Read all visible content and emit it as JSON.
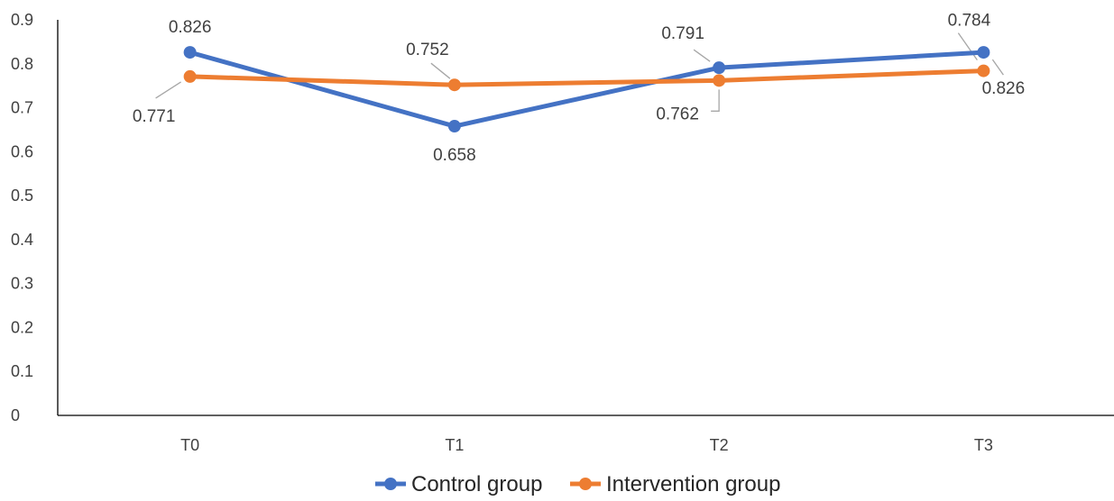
{
  "chart_data": {
    "type": "line",
    "categories": [
      "T0",
      "T1",
      "T2",
      "T3"
    ],
    "series": [
      {
        "name": "Control group",
        "values": [
          0.826,
          0.658,
          0.791,
          0.826
        ],
        "color": "#4472C4"
      },
      {
        "name": "Intervention group",
        "values": [
          0.771,
          0.752,
          0.762,
          0.784
        ],
        "color": "#ED7D31"
      }
    ],
    "yticks": [
      "0",
      "0.1",
      "0.2",
      "0.3",
      "0.4",
      "0.5",
      "0.6",
      "0.7",
      "0.8",
      "0.9"
    ],
    "ylim": [
      0,
      0.9
    ],
    "data_labels": [
      {
        "series": 0,
        "point": 0,
        "text": "0.826"
      },
      {
        "series": 0,
        "point": 1,
        "text": "0.658"
      },
      {
        "series": 0,
        "point": 2,
        "text": "0.791"
      },
      {
        "series": 0,
        "point": 3,
        "text": "0.826"
      },
      {
        "series": 1,
        "point": 0,
        "text": "0.771"
      },
      {
        "series": 1,
        "point": 1,
        "text": "0.752"
      },
      {
        "series": 1,
        "point": 2,
        "text": "0.762"
      },
      {
        "series": 1,
        "point": 3,
        "text": "0.784"
      }
    ],
    "legend_position": "bottom",
    "grid": false,
    "title": "",
    "xlabel": "",
    "ylabel": ""
  }
}
